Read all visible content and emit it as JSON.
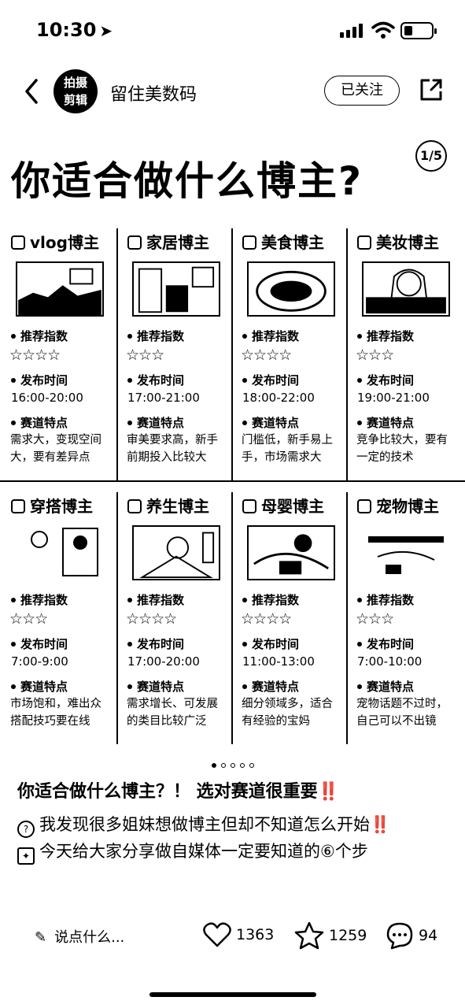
{
  "status": {
    "time": "10:30"
  },
  "header": {
    "author": "留住美数码",
    "avatar_text": "拍摄剪辑",
    "follow_label": "已关注"
  },
  "banner": {
    "title": "你适合做什么博主?",
    "page_indicator": "1/5",
    "label_recommend": "推荐指数",
    "label_time": "发布时间",
    "label_feature": "赛道特点",
    "cells": [
      {
        "name": "vlog博主",
        "stars": "☆☆☆☆",
        "time": "16:00-20:00",
        "feature": "需求大，变现空间大，要有差异点"
      },
      {
        "name": "家居博主",
        "stars": "☆☆☆",
        "time": "17:00-21:00",
        "feature": "审美要求高，新手前期投入比较大"
      },
      {
        "name": "美食博主",
        "stars": "☆☆☆☆",
        "time": "18:00-22:00",
        "feature": "门槛低，新手易上手，市场需求大"
      },
      {
        "name": "美妆博主",
        "stars": "☆☆☆",
        "time": "19:00-21:00",
        "feature": "竞争比较大，要有一定的技术"
      },
      {
        "name": "穿搭博主",
        "stars": "☆☆☆",
        "time": "7:00-9:00",
        "feature": "市场饱和，难出众搭配技巧要在线"
      },
      {
        "name": "养生博主",
        "stars": "☆☆☆☆",
        "time": "17:00-20:00",
        "feature": "需求增长、可发展的类目比较广泛"
      },
      {
        "name": "母婴博主",
        "stars": "☆☆☆☆",
        "time": "11:00-13:00",
        "feature": "细分领域多，适合有经验的宝妈"
      },
      {
        "name": "宠物博主",
        "stars": "☆☆☆",
        "time": "7:00-10:00",
        "feature": "宠物话题不过时，自己可以不出镜"
      }
    ]
  },
  "post": {
    "title": "你适合做什么博主？！ 选对赛道很重要‼️",
    "line1": "我发现很多姐妹想做博主但却不知道怎么开始‼️",
    "line2": "今天给大家分享做自媒体一定要知道的⑥个步"
  },
  "bottom": {
    "comment_placeholder": "说点什么...",
    "likes": "1363",
    "collects": "1259",
    "comments": "94"
  }
}
